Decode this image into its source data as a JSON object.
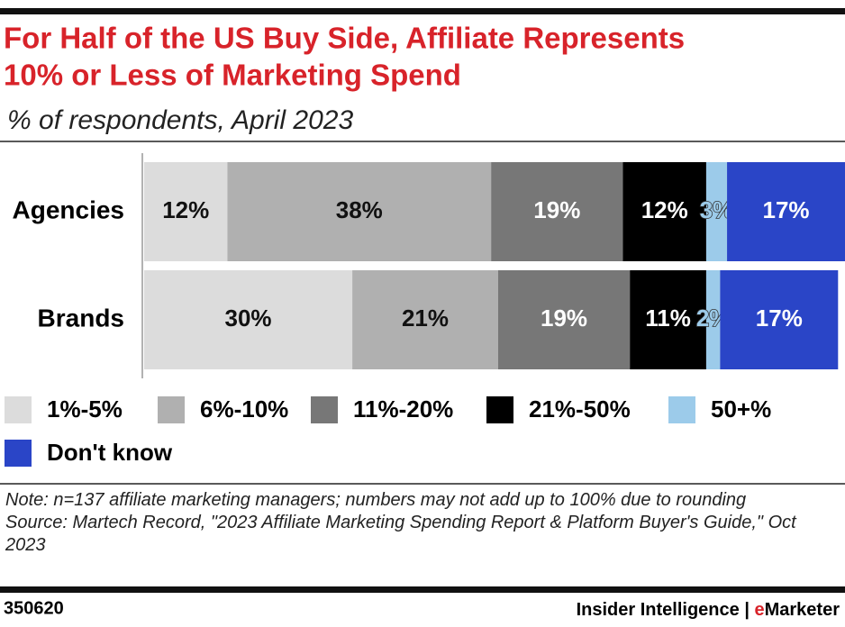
{
  "chart_data": {
    "type": "stacked-bar",
    "title": [
      "For Half of the US Buy Side, Affiliate Represents",
      "10% or Less of Marketing Spend"
    ],
    "subtitle": "% of respondents, April 2023",
    "categories": [
      "Agencies",
      "Brands"
    ],
    "series": [
      {
        "name": "1%-5%",
        "color": "#dcdcdc",
        "values": [
          12,
          30
        ],
        "value_labels": [
          "12%",
          "30%"
        ]
      },
      {
        "name": "6%-10%",
        "color": "#b0b0b0",
        "values": [
          38,
          21
        ],
        "value_labels": [
          "38%",
          "21%"
        ]
      },
      {
        "name": "11%-20%",
        "color": "#777777",
        "values": [
          19,
          19
        ],
        "value_labels": [
          "19%",
          "19%"
        ]
      },
      {
        "name": "21%-50%",
        "color": "#000000",
        "values": [
          12,
          11
        ],
        "value_labels": [
          "12%",
          "11%"
        ]
      },
      {
        "name": "50+%",
        "color": "#9ccbea",
        "values": [
          3,
          2
        ],
        "value_labels": [
          "3%",
          "2%"
        ]
      },
      {
        "name": "Don't know",
        "color": "#2a45c7",
        "values": [
          17,
          17
        ],
        "value_labels": [
          "17%",
          "17%"
        ]
      }
    ],
    "note": "Note: n=137 affiliate marketing managers; numbers may not add up to 100% due to rounding",
    "source": "Source: Martech Record, \"2023 Affiliate Marketing Spending Report & Platform Buyer's Guide,\" Oct 2023",
    "footer": {
      "id": "350620",
      "publisher": "Insider Intelligence",
      "separator": "|",
      "brand_accent": "e",
      "brand_rest": "Marketer"
    }
  }
}
